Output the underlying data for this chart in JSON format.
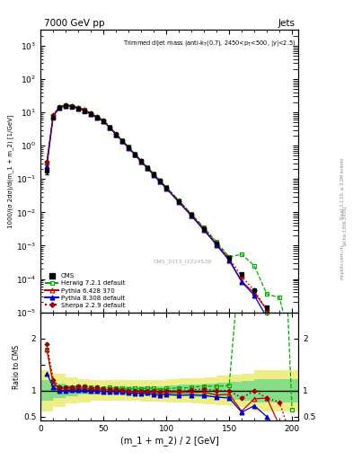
{
  "xlim": [
    0,
    205
  ],
  "ylim_main": [
    1e-05,
    3000
  ],
  "ylim_ratio": [
    0.42,
    2.5
  ],
  "xdata": [
    5,
    10,
    15,
    20,
    25,
    30,
    35,
    40,
    45,
    50,
    55,
    60,
    65,
    70,
    75,
    80,
    85,
    90,
    95,
    100,
    110,
    120,
    130,
    140,
    150,
    160,
    170,
    180,
    190,
    200
  ],
  "cms_y": [
    0.18,
    7.0,
    14.0,
    16.0,
    15.0,
    13.0,
    11.0,
    9.0,
    7.0,
    5.5,
    3.5,
    2.2,
    1.4,
    0.9,
    0.56,
    0.35,
    0.22,
    0.14,
    0.09,
    0.056,
    0.022,
    0.0085,
    0.0032,
    0.0012,
    0.00042,
    0.00014,
    4.5e-05,
    1.4e-05,
    4.5e-06,
    1.4e-06
  ],
  "cms_yerr": [
    0.04,
    0.5,
    1.0,
    1.0,
    0.9,
    0.8,
    0.7,
    0.6,
    0.5,
    0.4,
    0.25,
    0.16,
    0.1,
    0.065,
    0.04,
    0.025,
    0.016,
    0.01,
    0.0065,
    0.004,
    0.0016,
    0.0006,
    0.00022,
    9e-05,
    3e-05,
    1.1e-05,
    3.5e-06,
    1.2e-06,
    5e-07,
    3e-07
  ],
  "herwig_y": [
    0.32,
    8.0,
    15.0,
    17.0,
    16.0,
    14.0,
    12.0,
    9.5,
    7.5,
    5.8,
    3.7,
    2.3,
    1.45,
    0.93,
    0.58,
    0.36,
    0.23,
    0.145,
    0.092,
    0.058,
    0.023,
    0.009,
    0.0035,
    0.0013,
    0.00046,
    0.00055,
    0.00025,
    3.5e-05,
    2.8e-05,
    9e-07
  ],
  "pythia6_y": [
    0.32,
    8.0,
    14.5,
    16.5,
    15.5,
    13.5,
    11.5,
    9.2,
    7.2,
    5.6,
    3.55,
    2.2,
    1.4,
    0.88,
    0.55,
    0.34,
    0.215,
    0.135,
    0.085,
    0.054,
    0.021,
    0.0082,
    0.0031,
    0.0011,
    0.00039,
    8.5e-05,
    3.8e-05,
    1.2e-05,
    1.5e-06,
    2.5e-07
  ],
  "pythia8_y": [
    0.24,
    7.5,
    14.0,
    16.0,
    15.2,
    13.2,
    11.2,
    9.0,
    7.0,
    5.4,
    3.45,
    2.15,
    1.36,
    0.86,
    0.53,
    0.33,
    0.21,
    0.13,
    0.082,
    0.052,
    0.02,
    0.0078,
    0.0029,
    0.00105,
    0.00036,
    8.2e-05,
    3.2e-05,
    7e-06,
    1e-06,
    1.5e-07
  ],
  "sherpa_y": [
    0.34,
    8.5,
    15.0,
    17.0,
    16.0,
    14.0,
    12.0,
    9.5,
    7.4,
    5.7,
    3.6,
    2.25,
    1.42,
    0.9,
    0.56,
    0.35,
    0.22,
    0.14,
    0.088,
    0.056,
    0.022,
    0.0086,
    0.0033,
    0.0012,
    0.00042,
    0.00012,
    4.5e-05,
    1.2e-05,
    3.5e-06,
    1e-07
  ],
  "ratio_herwig": [
    1.78,
    1.14,
    1.07,
    1.06,
    1.07,
    1.08,
    1.09,
    1.06,
    1.07,
    1.05,
    1.06,
    1.05,
    1.04,
    1.03,
    1.04,
    1.03,
    1.05,
    1.04,
    1.02,
    1.04,
    1.05,
    1.06,
    1.09,
    1.08,
    1.1,
    3.93,
    5.56,
    2.5,
    6.2,
    0.64
  ],
  "ratio_pythia6": [
    1.78,
    1.14,
    1.04,
    1.03,
    1.03,
    1.04,
    1.05,
    1.02,
    1.03,
    1.02,
    1.01,
    1.0,
    1.0,
    0.978,
    0.982,
    0.971,
    0.977,
    0.964,
    0.944,
    0.964,
    0.955,
    0.965,
    0.969,
    0.917,
    0.929,
    0.607,
    0.844,
    0.857,
    0.333,
    0.179
  ],
  "ratio_pythia8": [
    1.33,
    1.07,
    1.0,
    1.0,
    1.013,
    1.015,
    1.018,
    1.0,
    1.0,
    0.982,
    0.986,
    0.977,
    0.971,
    0.956,
    0.946,
    0.943,
    0.955,
    0.929,
    0.911,
    0.929,
    0.909,
    0.918,
    0.906,
    0.875,
    0.857,
    0.586,
    0.711,
    0.5,
    0.222,
    0.107
  ],
  "ratio_sherpa": [
    1.89,
    1.21,
    1.07,
    1.06,
    1.067,
    1.077,
    1.09,
    1.056,
    1.057,
    1.036,
    1.029,
    1.023,
    1.014,
    1.0,
    1.0,
    1.0,
    1.0,
    1.0,
    0.978,
    1.0,
    1.0,
    1.012,
    1.031,
    1.0,
    1.0,
    0.857,
    1.0,
    0.857,
    0.778,
    0.071
  ],
  "band_outer_xedges": [
    0,
    10,
    20,
    30,
    40,
    50,
    60,
    70,
    80,
    90,
    100,
    110,
    120,
    130,
    140,
    150,
    160,
    170,
    205
  ],
  "band_outer_lo": [
    0.6,
    0.68,
    0.75,
    0.78,
    0.8,
    0.8,
    0.8,
    0.8,
    0.79,
    0.79,
    0.78,
    0.77,
    0.76,
    0.74,
    0.72,
    0.7,
    0.68,
    0.6,
    0.6
  ],
  "band_outer_hi": [
    1.4,
    1.32,
    1.25,
    1.22,
    1.2,
    1.2,
    1.2,
    1.2,
    1.21,
    1.21,
    1.22,
    1.23,
    1.24,
    1.26,
    1.28,
    1.3,
    1.32,
    1.4,
    1.4
  ],
  "band_inner_xedges": [
    0,
    10,
    20,
    30,
    40,
    50,
    60,
    70,
    80,
    90,
    100,
    110,
    120,
    130,
    140,
    150,
    160,
    170,
    205
  ],
  "band_inner_lo": [
    0.8,
    0.86,
    0.9,
    0.92,
    0.93,
    0.93,
    0.92,
    0.92,
    0.91,
    0.91,
    0.9,
    0.89,
    0.88,
    0.87,
    0.85,
    0.83,
    0.81,
    0.78,
    0.78
  ],
  "band_inner_hi": [
    1.2,
    1.14,
    1.1,
    1.08,
    1.07,
    1.07,
    1.08,
    1.08,
    1.09,
    1.09,
    1.1,
    1.11,
    1.12,
    1.13,
    1.15,
    1.17,
    1.19,
    1.22,
    1.22
  ],
  "color_cms": "#000000",
  "color_herwig": "#00aa00",
  "color_pythia6": "#cc0000",
  "color_pythia8": "#0000cc",
  "color_sherpa": "#990000",
  "band_inner_color": "#88dd88",
  "band_outer_color": "#eeee88",
  "title_left": "7000 GeV pp",
  "title_right": "Jets",
  "annotation": "Trimmed dijet mass (anti-k_{T}(0.7), 2450<p_{T}<500, |y|<2.5)",
  "watermark": "CMS_2013_I1224539",
  "right_label_top": "Rivet 3.1.10, ≥ 3.2M events",
  "right_label_mid": "[arXiv:1306.3436]",
  "right_label_bot": "mcplots.cern.ch",
  "ylabel_main": "1000/(σ 2dσ)/d(m_1 + m_2) [1/GeV]",
  "ylabel_ratio": "Ratio to CMS",
  "xlabel": "(m_1 + m_2) / 2 [GeV]"
}
